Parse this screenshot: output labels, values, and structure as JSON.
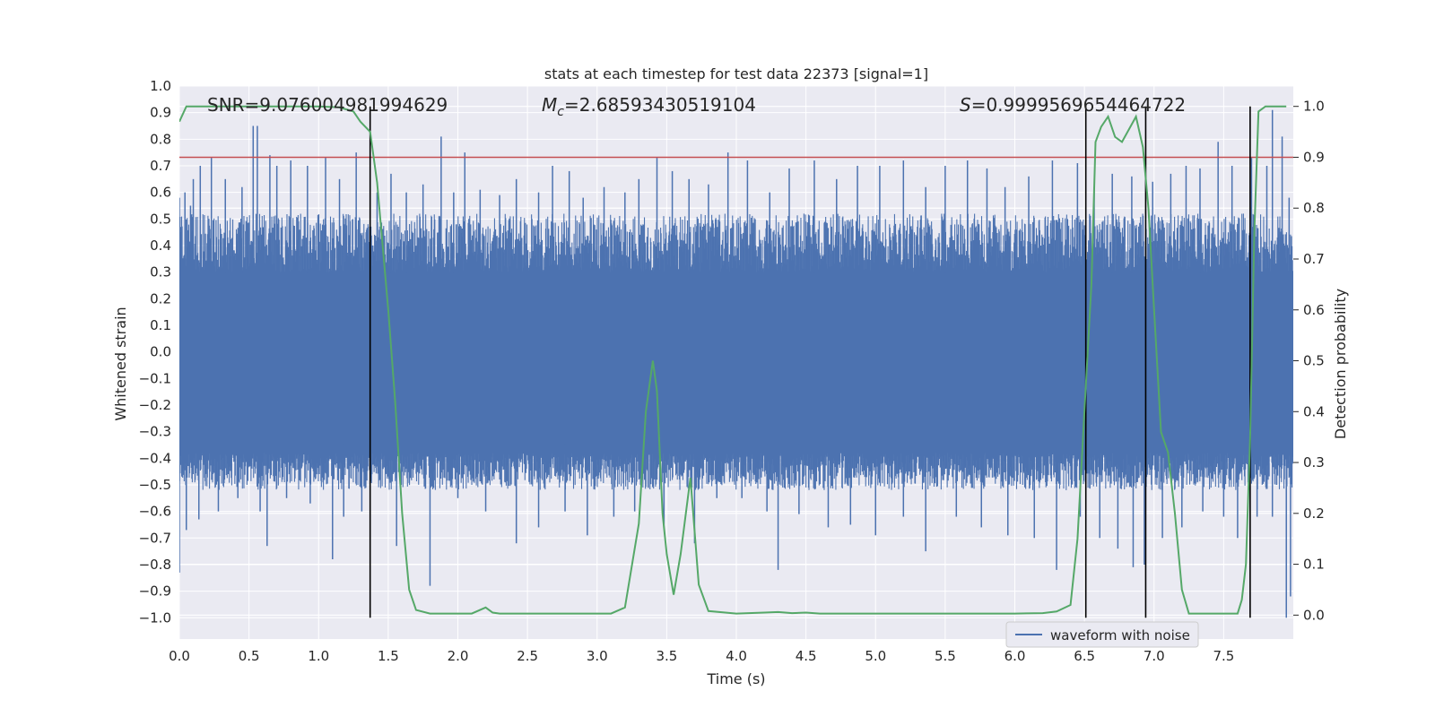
{
  "chart_data": {
    "type": "line",
    "title": "stats at each timestep for test data 22373 [signal=1]",
    "xlabel": "Time (s)",
    "ylabel": "Whitened strain",
    "y2label": "Detection probability",
    "xlim": [
      0.0,
      8.0
    ],
    "ylim": [
      -1.08,
      1.0
    ],
    "y2lim": [
      -0.047,
      1.04
    ],
    "xticks": [
      "0.0",
      "0.5",
      "1.0",
      "1.5",
      "2.0",
      "2.5",
      "3.0",
      "3.5",
      "4.0",
      "4.5",
      "5.0",
      "5.5",
      "6.0",
      "6.5",
      "7.0",
      "7.5"
    ],
    "yticks": [
      "1.0",
      "0.9",
      "0.8",
      "0.7",
      "0.6",
      "0.5",
      "0.4",
      "0.3",
      "0.2",
      "0.1",
      "0.0",
      "−0.1",
      "−0.2",
      "−0.3",
      "−0.4",
      "−0.5",
      "−0.6",
      "−0.7",
      "−0.8",
      "−0.9",
      "−1.0"
    ],
    "y2ticks": [
      "1.0",
      "0.9",
      "0.8",
      "0.7",
      "0.6",
      "0.5",
      "0.4",
      "0.3",
      "0.2",
      "0.1",
      "0.0"
    ],
    "annotations": {
      "snr": "SNR=9.076004981994629",
      "mc_symbol": "M",
      "mc_subscript": "c",
      "mc_value": "=2.68593430519104",
      "s_symbol": "S",
      "s_value": "=0.9999569654464722"
    },
    "threshold": {
      "value": 0.9,
      "axis": "y2",
      "color": "#c44e52"
    },
    "vertical_markers": [
      1.37,
      6.51,
      6.94,
      7.69
    ],
    "series": [
      {
        "name": "waveform with noise",
        "axis": "y",
        "color": "#4c72b0",
        "envelope_note": "dense noisy strain sampled over 0-8 s",
        "spikes_up": [
          [
            0.0,
            0.58
          ],
          [
            0.04,
            0.6
          ],
          [
            0.08,
            0.55
          ],
          [
            0.1,
            0.65
          ],
          [
            0.15,
            0.7
          ],
          [
            0.23,
            0.73
          ],
          [
            0.33,
            0.65
          ],
          [
            0.45,
            0.62
          ],
          [
            0.53,
            0.85
          ],
          [
            0.56,
            0.85
          ],
          [
            0.65,
            0.74
          ],
          [
            0.7,
            0.7
          ],
          [
            0.8,
            0.72
          ],
          [
            0.92,
            0.7
          ],
          [
            1.05,
            0.73
          ],
          [
            1.15,
            0.65
          ],
          [
            1.27,
            0.75
          ],
          [
            1.42,
            0.6
          ],
          [
            1.52,
            0.67
          ],
          [
            1.63,
            0.6
          ],
          [
            1.75,
            0.63
          ],
          [
            1.88,
            0.81
          ],
          [
            1.97,
            0.6
          ],
          [
            2.05,
            0.75
          ],
          [
            2.16,
            0.61
          ],
          [
            2.3,
            0.59
          ],
          [
            2.42,
            0.65
          ],
          [
            2.58,
            0.6
          ],
          [
            2.68,
            0.7
          ],
          [
            2.8,
            0.68
          ],
          [
            2.9,
            0.58
          ],
          [
            3.05,
            0.62
          ],
          [
            3.2,
            0.6
          ],
          [
            3.3,
            0.65
          ],
          [
            3.43,
            0.73
          ],
          [
            3.54,
            0.68
          ],
          [
            3.66,
            0.65
          ],
          [
            3.8,
            0.63
          ],
          [
            3.94,
            0.75
          ],
          [
            4.08,
            0.72
          ],
          [
            4.24,
            0.6
          ],
          [
            4.38,
            0.69
          ],
          [
            4.56,
            0.72
          ],
          [
            4.72,
            0.65
          ],
          [
            4.87,
            0.7
          ],
          [
            5.03,
            0.7
          ],
          [
            5.2,
            0.72
          ],
          [
            5.36,
            0.62
          ],
          [
            5.5,
            0.7
          ],
          [
            5.66,
            0.72
          ],
          [
            5.8,
            0.69
          ],
          [
            5.93,
            0.62
          ],
          [
            6.1,
            0.66
          ],
          [
            6.27,
            0.72
          ],
          [
            6.45,
            0.71
          ],
          [
            6.57,
            0.62
          ],
          [
            6.7,
            0.67
          ],
          [
            6.84,
            0.66
          ],
          [
            6.99,
            0.64
          ],
          [
            7.12,
            0.67
          ],
          [
            7.23,
            0.7
          ],
          [
            7.33,
            0.69
          ],
          [
            7.46,
            0.79
          ],
          [
            7.56,
            0.7
          ],
          [
            7.7,
            0.73
          ],
          [
            7.81,
            0.7
          ],
          [
            7.85,
            0.91
          ],
          [
            7.92,
            0.81
          ],
          [
            7.97,
            0.58
          ]
        ],
        "spikes_down": [
          [
            0.0,
            -0.83
          ],
          [
            0.05,
            -0.67
          ],
          [
            0.14,
            -0.63
          ],
          [
            0.28,
            -0.6
          ],
          [
            0.42,
            -0.55
          ],
          [
            0.58,
            -0.6
          ],
          [
            0.63,
            -0.73
          ],
          [
            0.77,
            -0.55
          ],
          [
            0.94,
            -0.57
          ],
          [
            1.1,
            -0.78
          ],
          [
            1.18,
            -0.62
          ],
          [
            1.31,
            -0.6
          ],
          [
            1.56,
            -0.73
          ],
          [
            1.8,
            -0.88
          ],
          [
            2.0,
            -0.55
          ],
          [
            2.2,
            -0.6
          ],
          [
            2.42,
            -0.72
          ],
          [
            2.58,
            -0.66
          ],
          [
            2.77,
            -0.6
          ],
          [
            2.93,
            -0.69
          ],
          [
            3.12,
            -0.62
          ],
          [
            3.27,
            -0.6
          ],
          [
            3.48,
            -0.65
          ],
          [
            3.7,
            -0.72
          ],
          [
            3.86,
            -0.55
          ],
          [
            4.04,
            -0.55
          ],
          [
            4.22,
            -0.6
          ],
          [
            4.3,
            -0.82
          ],
          [
            4.45,
            -0.61
          ],
          [
            4.66,
            -0.66
          ],
          [
            4.82,
            -0.65
          ],
          [
            5.0,
            -0.69
          ],
          [
            5.2,
            -0.62
          ],
          [
            5.36,
            -0.75
          ],
          [
            5.58,
            -0.62
          ],
          [
            5.76,
            -0.66
          ],
          [
            5.95,
            -0.69
          ],
          [
            6.14,
            -0.7
          ],
          [
            6.3,
            -0.82
          ],
          [
            6.47,
            -0.62
          ],
          [
            6.61,
            -0.7
          ],
          [
            6.74,
            -0.74
          ],
          [
            6.85,
            -0.81
          ],
          [
            6.93,
            -0.8
          ],
          [
            7.06,
            -0.7
          ],
          [
            7.2,
            -0.66
          ],
          [
            7.35,
            -0.6
          ],
          [
            7.5,
            -0.62
          ],
          [
            7.6,
            -0.7
          ],
          [
            7.74,
            -0.62
          ],
          [
            7.85,
            -0.62
          ],
          [
            7.95,
            -1.0
          ],
          [
            7.98,
            -0.92
          ]
        ]
      },
      {
        "name": "detection probability",
        "axis": "y2",
        "color": "#55a868",
        "x": [
          0.0,
          0.05,
          0.1,
          0.2,
          0.4,
          0.6,
          0.8,
          1.0,
          1.15,
          1.25,
          1.3,
          1.37,
          1.42,
          1.5,
          1.55,
          1.6,
          1.65,
          1.7,
          1.8,
          2.0,
          2.1,
          2.2,
          2.25,
          2.3,
          2.5,
          2.7,
          2.9,
          3.1,
          3.2,
          3.3,
          3.35,
          3.4,
          3.43,
          3.47,
          3.5,
          3.55,
          3.6,
          3.67,
          3.73,
          3.8,
          4.0,
          4.2,
          4.3,
          4.4,
          4.5,
          4.6,
          4.8,
          5.0,
          5.2,
          5.5,
          5.8,
          6.0,
          6.2,
          6.3,
          6.4,
          6.45,
          6.5,
          6.55,
          6.58,
          6.62,
          6.67,
          6.72,
          6.77,
          6.83,
          6.87,
          6.92,
          6.96,
          7.0,
          7.05,
          7.1,
          7.15,
          7.2,
          7.25,
          7.3,
          7.4,
          7.5,
          7.6,
          7.63,
          7.66,
          7.69,
          7.72,
          7.75,
          7.8,
          7.85,
          7.95
        ],
        "y": [
          0.97,
          1.0,
          1.0,
          1.0,
          1.0,
          1.0,
          1.0,
          1.0,
          0.998,
          0.99,
          0.97,
          0.95,
          0.85,
          0.6,
          0.42,
          0.2,
          0.05,
          0.01,
          0.003,
          0.003,
          0.003,
          0.015,
          0.005,
          0.003,
          0.003,
          0.003,
          0.003,
          0.003,
          0.015,
          0.18,
          0.4,
          0.5,
          0.44,
          0.2,
          0.12,
          0.04,
          0.12,
          0.27,
          0.06,
          0.008,
          0.003,
          0.005,
          0.006,
          0.004,
          0.005,
          0.003,
          0.003,
          0.003,
          0.003,
          0.003,
          0.003,
          0.003,
          0.004,
          0.007,
          0.02,
          0.15,
          0.4,
          0.65,
          0.93,
          0.96,
          0.98,
          0.94,
          0.93,
          0.96,
          0.98,
          0.92,
          0.8,
          0.6,
          0.36,
          0.32,
          0.2,
          0.05,
          0.003,
          0.003,
          0.003,
          0.003,
          0.003,
          0.03,
          0.1,
          0.35,
          0.75,
          0.99,
          1.0,
          1.0,
          1.0
        ]
      }
    ],
    "legend": {
      "position": "bottom-right",
      "entries": [
        "waveform with noise"
      ]
    }
  }
}
